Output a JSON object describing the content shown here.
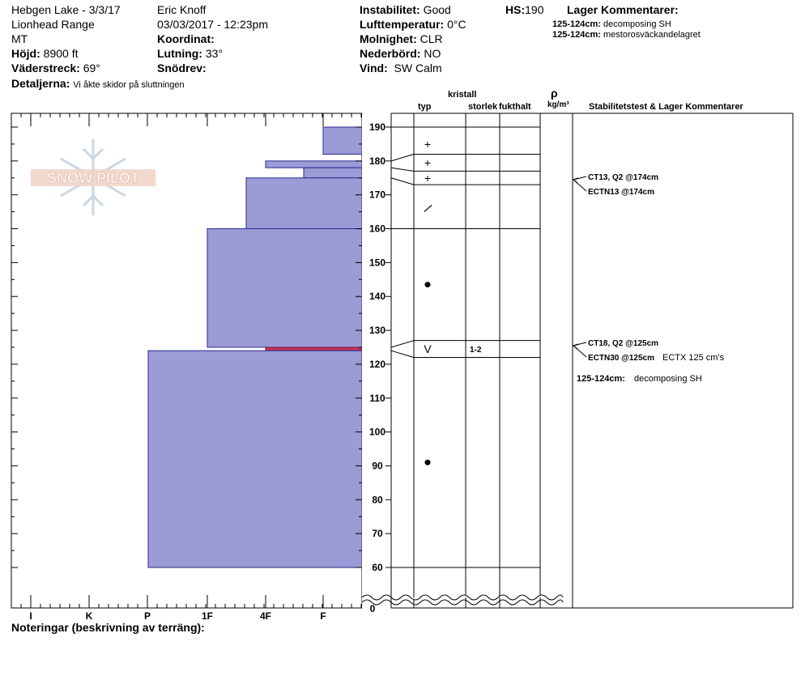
{
  "header": {
    "location": "Hebgen Lake - 3/3/17",
    "range": "Lionhead Range",
    "state": "MT",
    "elevation_label": "Höjd:",
    "elevation_value": "8900 ft",
    "aspect_label": "Väderstreck:",
    "aspect_value": "69°",
    "details_label": "Detaljerna:",
    "details_value": "Vi åkte skidor på sluttningen",
    "observer": "Eric Knoff",
    "datetime": "03/03/2017 - 12:23pm",
    "coord_label": "Koordinat:",
    "slope_label": "Lutning:",
    "slope_value": "33°",
    "drift_label": "Snödrev:",
    "instability_label": "Instabilitet:",
    "instability_value": "Good",
    "airtemp_label": "Lufttemperatur:",
    "airtemp_value": "0°C",
    "sky_label": "Molnighet:",
    "sky_value": "CLR",
    "precip_label": "Nederbörd:",
    "precip_value": "NO",
    "wind_label": "Vind:",
    "wind_value": "SW Calm",
    "hs_label": "HS:",
    "hs_value": "190",
    "layer_comments_title": "Lager Kommentarer:",
    "layer_comments": [
      {
        "range": "125-124cm:",
        "text": "decomposing SH"
      },
      {
        "range": "125-124cm:",
        "text": "mestorosväckandelagret"
      }
    ]
  },
  "logo_text": "SNOW PILOT",
  "columns": {
    "typ": "typ",
    "kristall": "kristall",
    "storlek": "storlek",
    "fukthalt": "fukthalt",
    "rho": "ρ",
    "density_unit": "kg/m³",
    "stability_title": "Stabilitetstest & Lager Kommentarer"
  },
  "footer_notes_label": "Noteringar (beskrivning av terräng):",
  "chart_data": {
    "type": "bar",
    "hardness_scale": [
      "I",
      "K",
      "P",
      "1F",
      "4F",
      "F"
    ],
    "depth_ticks": [
      190,
      180,
      170,
      160,
      150,
      140,
      130,
      120,
      110,
      100,
      90,
      80,
      70,
      60
    ],
    "depth_axis_break_label": "0",
    "depth_range": [
      60,
      190
    ],
    "layers": [
      {
        "top": 190,
        "bottom": 182,
        "hardness": "F"
      },
      {
        "top": 180,
        "bottom": 178,
        "hardness": "4F"
      },
      {
        "top": 178,
        "bottom": 175,
        "hardness": "4F-"
      },
      {
        "top": 175,
        "bottom": 160,
        "hardness": "1F+"
      },
      {
        "top": 160,
        "bottom": 125,
        "hardness": "1F-"
      },
      {
        "top": 125,
        "bottom": 124,
        "hardness": "4F",
        "highlight": true
      },
      {
        "top": 124,
        "bottom": 60,
        "hardness": "P-"
      }
    ],
    "layer_boundaries": [
      190,
      182,
      177,
      173,
      160,
      127,
      122,
      60
    ],
    "grain_types": [
      {
        "depth": 185,
        "symbol": "+"
      },
      {
        "depth": 179.5,
        "symbol": "+"
      },
      {
        "depth": 175,
        "symbol": "+"
      },
      {
        "depth": 166,
        "symbol": "/"
      },
      {
        "depth": 143.5,
        "symbol": "●"
      },
      {
        "depth": 124.5,
        "symbol": "V",
        "size": "1-2"
      },
      {
        "depth": 91,
        "symbol": "●"
      }
    ],
    "stability_tests": [
      {
        "depth": 174,
        "label": "CT13, Q2 @174cm"
      },
      {
        "depth": 174,
        "label": "ECTN13 @174cm"
      },
      {
        "depth": 125,
        "label": "CT18, Q2 @125cm"
      },
      {
        "depth": 125,
        "label": "ECTN30 @125cm",
        "extra": "ECTX 125 cm's"
      }
    ],
    "stability_comment": {
      "range": "125-124cm:",
      "text": "decomposing SH"
    }
  }
}
